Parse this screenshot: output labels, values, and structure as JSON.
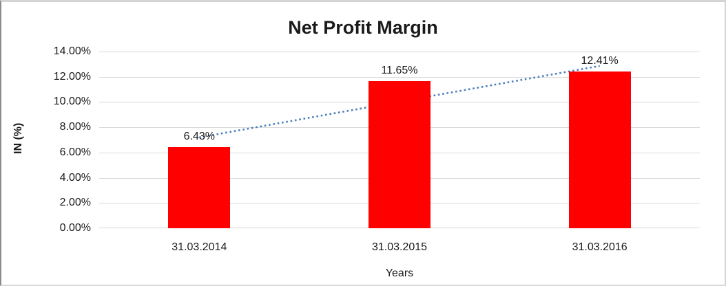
{
  "chart_data": {
    "type": "bar",
    "title": "Net Profit Margin",
    "xlabel": "Years",
    "ylabel": "IN (%)",
    "categories": [
      "31.03.2014",
      "31.03.2015",
      "31.03.2016"
    ],
    "values": [
      6.43,
      11.65,
      12.41
    ],
    "data_labels": [
      "6.43%",
      "11.65%",
      "12.41%"
    ],
    "ylim": [
      0,
      14
    ],
    "ytick_step": 2,
    "ytick_labels": [
      "0.00%",
      "2.00%",
      "4.00%",
      "6.00%",
      "8.00%",
      "10.00%",
      "12.00%",
      "14.00%"
    ],
    "grid": true,
    "legend": "none",
    "bar_color": "#FF0000",
    "gridline_color": "#D9D9D9",
    "text_color": "#1A1A1A",
    "trendline": {
      "type": "linear",
      "style": "dotted",
      "color": "#4A7EBB",
      "start_value": 7.2,
      "end_value": 12.86
    }
  }
}
